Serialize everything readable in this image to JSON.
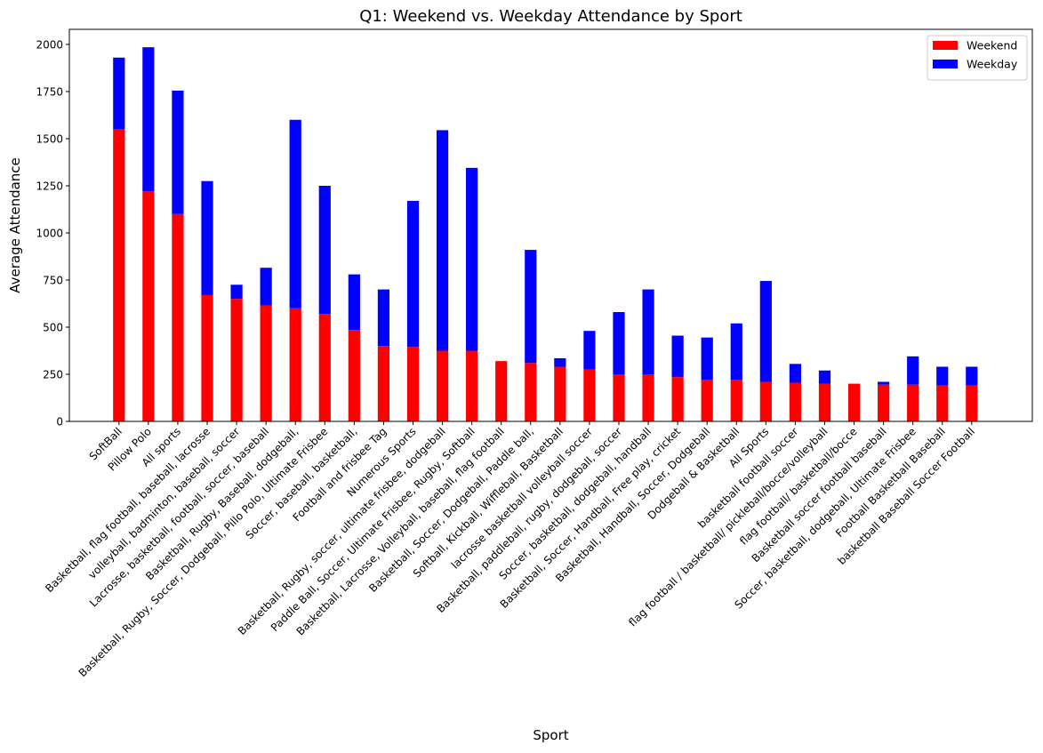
{
  "chart_data": {
    "type": "bar",
    "stacked": true,
    "title": "Q1: Weekend vs. Weekday Attendance by Sport",
    "xlabel": "Sport",
    "ylabel": "Average Attendance",
    "ylim": [
      0,
      2080
    ],
    "yticks": [
      0,
      250,
      500,
      750,
      1000,
      1250,
      1500,
      1750,
      2000
    ],
    "grid": false,
    "legend_position": "top-right",
    "categories": [
      "SoftBall",
      "Pillow Polo",
      "All sports",
      "Basketball, flag football, baseball, lacrosse",
      "volleyball, badminton, baseball, soccer",
      "Lacrosse, basketball, football, soccer, baseball",
      "Basketball, Rugby, Baseball, dodgeball,",
      "Basketball, Rugby, Soccer, Dodgeball, Pillo Polo, Ultimate Frisbee",
      "Soccer, baseball, basketball,",
      "Football and frisbee Tag",
      "Numerous Sports",
      "Basketball, Rugby, soccer, ultimate frisbee, dodgeball",
      "Paddle Ball, Soccer, Ultimate Frisbee, Rugby, Softball",
      "Basketball, Lacrosse, Volleyball, baseball, flag football",
      "Basketball, Soccer, Dodgeball, Paddle ball,",
      "Softball, Kickball, Wiffleball, Basketball",
      "lacrosse basketball volleyball soccer",
      "Basketball, paddleball, rugby, dodgeball, soccer",
      "Soccer, basketball, dodgeball, handball",
      "Basketball, Soccer, Handball, Free play, cricket",
      "Basketball, Handball, Soccer, Dodgeball",
      "Dodgeball & Basketball",
      "All Sports",
      "basketball football soccer",
      "flag football / basketball/ pickleball/bocce/volleyball",
      "flag football/ basketball/bocce",
      "Basketball soccer football baseball",
      "Soccer, basketball, dodgeball, Ultimate Frisbee",
      "Football Basketball Baseball",
      "basketball Baseball Soccer Football"
    ],
    "series": [
      {
        "name": "Weekend",
        "color": "#ff0000",
        "values": [
          1550,
          1220,
          1100,
          670,
          650,
          615,
          600,
          570,
          485,
          400,
          395,
          375,
          375,
          320,
          310,
          290,
          275,
          250,
          250,
          235,
          220,
          220,
          210,
          205,
          200,
          200,
          195,
          195,
          190,
          190
        ]
      },
      {
        "name": "Weekday",
        "color": "#0000ff",
        "values": [
          380,
          765,
          655,
          605,
          75,
          200,
          1000,
          680,
          295,
          300,
          775,
          1170,
          970,
          0,
          600,
          45,
          205,
          330,
          450,
          220,
          225,
          300,
          535,
          100,
          70,
          0,
          15,
          150,
          100,
          100
        ]
      }
    ]
  }
}
